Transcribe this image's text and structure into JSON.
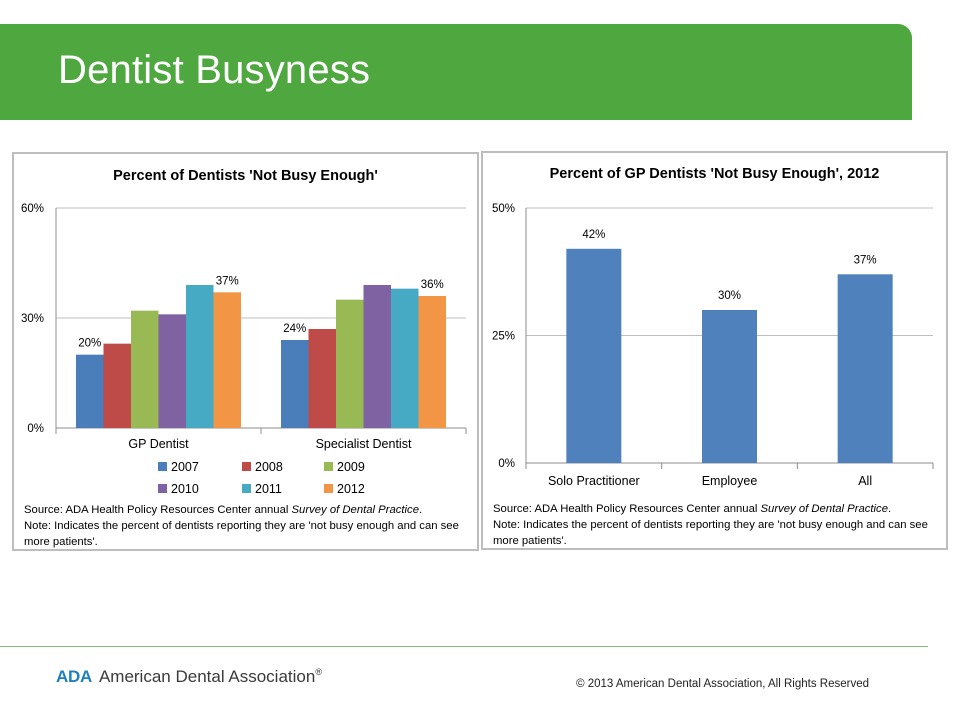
{
  "slide": {
    "title": "Dentist Busyness",
    "logo_abbrev": "ADA",
    "logo_name": "American Dental Association",
    "logo_mark": "®",
    "copyright": "© 2013 American Dental Association, All Rights Reserved"
  },
  "chart_data": [
    {
      "type": "bar",
      "title": "Percent of Dentists 'Not Busy Enough'",
      "categories": [
        "GP Dentist",
        "Specialist Dentist"
      ],
      "series": [
        {
          "name": "2007",
          "color": "#4a7ebb",
          "values": [
            20,
            24
          ]
        },
        {
          "name": "2008",
          "color": "#be4b48",
          "values": [
            23,
            27
          ]
        },
        {
          "name": "2009",
          "color": "#98b954",
          "values": [
            32,
            35
          ]
        },
        {
          "name": "2010",
          "color": "#7e62a1",
          "values": [
            31,
            39
          ]
        },
        {
          "name": "2011",
          "color": "#46aac5",
          "values": [
            39,
            38
          ]
        },
        {
          "name": "2012",
          "color": "#f29544",
          "values": [
            37,
            36
          ]
        }
      ],
      "data_labels": [
        {
          "category": "GP Dentist",
          "series": "2007",
          "text": "20%"
        },
        {
          "category": "GP Dentist",
          "series": "2012",
          "text": "37%"
        },
        {
          "category": "Specialist Dentist",
          "series": "2007",
          "text": "24%"
        },
        {
          "category": "Specialist Dentist",
          "series": "2012",
          "text": "36%"
        }
      ],
      "y_ticks": [
        "0%",
        "30%",
        "60%"
      ],
      "ylim": [
        0,
        60
      ],
      "legend_position": "bottom",
      "grid": true,
      "source": "Source: ADA Health Policy Resources Center annual ",
      "source_italic": "Survey of Dental Practice",
      "source_end": ".",
      "note": "Note:  Indicates the percent of dentists reporting they are 'not busy enough and can see more patients'."
    },
    {
      "type": "bar",
      "title": "Percent of GP Dentists 'Not Busy Enough', 2012",
      "categories": [
        "Solo Practitioner",
        "Employee",
        "All"
      ],
      "values": [
        42,
        30,
        37
      ],
      "color": "#4f81bd",
      "data_labels": [
        "42%",
        "30%",
        "37%"
      ],
      "y_ticks": [
        "0%",
        "25%",
        "50%"
      ],
      "ylim": [
        0,
        50
      ],
      "grid": true,
      "source": "Source: ADA Health Policy Resources Center annual ",
      "source_italic": "Survey of Dental Practice",
      "source_end": ".",
      "note": "Note:  Indicates the percent of dentists reporting they are 'not busy enough and can see more patients'."
    }
  ]
}
